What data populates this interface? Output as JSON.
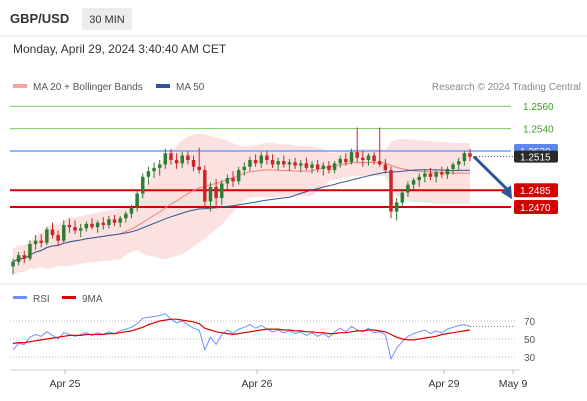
{
  "header": {
    "symbol": "GBP/USD",
    "timeframe": "30 MIN",
    "datetime": "Monday, April 29, 2024 3:40:40 AM CET"
  },
  "legend": {
    "ma20_label": "MA 20 + Bollinger Bands",
    "ma50_label": "MA 50",
    "credit": "Research © 2024 Trading Central"
  },
  "rsi_legend": {
    "rsi_label": "RSI",
    "ma_label": "9MA"
  },
  "colors": {
    "green_level": "#7cc46a",
    "blue_level": "#6f9dff",
    "red_level": "#d50000",
    "ma20": "#f08080",
    "ma50": "#2f5597",
    "bollinger_fill": "#fcdcdc",
    "candle_up": "#2e7d32",
    "candle_down": "#c62828",
    "rsi": "#6f8fff",
    "rsi_ma": "#e00000",
    "arrow": "#2f5597",
    "current_price_tag": "#2a2a2a"
  },
  "chart_data": {
    "type": "candlestick",
    "x_labels": [
      "Apr 25",
      "Apr 26",
      "Apr 29",
      "May 9"
    ],
    "levels": [
      {
        "price": "1.2560",
        "kind": "green"
      },
      {
        "price": "1.2540",
        "kind": "green"
      },
      {
        "price": "1.2520",
        "kind": "blue"
      },
      {
        "price": "1.2485",
        "kind": "red"
      },
      {
        "price": "1.2470",
        "kind": "red"
      }
    ],
    "current_price": "1.2515",
    "price_range": [
      1.2412,
      1.2562
    ],
    "forecast_arrow": {
      "from": 1.2515,
      "to": 1.2477
    },
    "candles": [
      [
        1.2417,
        1.2424,
        1.241,
        1.2421
      ],
      [
        1.2421,
        1.243,
        1.2418,
        1.2427
      ],
      [
        1.2427,
        1.2431,
        1.242,
        1.2424
      ],
      [
        1.2424,
        1.244,
        1.2422,
        1.2437
      ],
      [
        1.2437,
        1.2445,
        1.2432,
        1.244
      ],
      [
        1.244,
        1.2446,
        1.2434,
        1.2438
      ],
      [
        1.2438,
        1.2452,
        1.2436,
        1.245
      ],
      [
        1.245,
        1.2456,
        1.2442,
        1.2445
      ],
      [
        1.2445,
        1.2449,
        1.2435,
        1.244
      ],
      [
        1.244,
        1.2458,
        1.2438,
        1.2454
      ],
      [
        1.2454,
        1.246,
        1.2447,
        1.2452
      ],
      [
        1.2452,
        1.2458,
        1.2446,
        1.2449
      ],
      [
        1.2449,
        1.2455,
        1.2443,
        1.2451
      ],
      [
        1.2451,
        1.2457,
        1.2448,
        1.2455
      ],
      [
        1.2455,
        1.246,
        1.245,
        1.2452
      ],
      [
        1.2452,
        1.2458,
        1.2447,
        1.2456
      ],
      [
        1.2456,
        1.2461,
        1.245,
        1.2454
      ],
      [
        1.2454,
        1.2462,
        1.2451,
        1.2459
      ],
      [
        1.2459,
        1.2463,
        1.2453,
        1.2456
      ],
      [
        1.2456,
        1.2462,
        1.2452,
        1.246
      ],
      [
        1.246,
        1.2466,
        1.2456,
        1.2464
      ],
      [
        1.2464,
        1.2472,
        1.246,
        1.247
      ],
      [
        1.247,
        1.2485,
        1.2466,
        1.2482
      ],
      [
        1.2482,
        1.25,
        1.2478,
        1.2497
      ],
      [
        1.2497,
        1.2506,
        1.249,
        1.2502
      ],
      [
        1.2502,
        1.251,
        1.2496,
        1.2505
      ],
      [
        1.2505,
        1.2512,
        1.2498,
        1.2508
      ],
      [
        1.2508,
        1.2522,
        1.2504,
        1.2518
      ],
      [
        1.2518,
        1.2522,
        1.2508,
        1.2512
      ],
      [
        1.2512,
        1.2518,
        1.2504,
        1.2509
      ],
      [
        1.2509,
        1.2519,
        1.2505,
        1.2516
      ],
      [
        1.2516,
        1.252,
        1.2508,
        1.2512
      ],
      [
        1.2512,
        1.2516,
        1.2502,
        1.2506
      ],
      [
        1.2506,
        1.2523,
        1.25,
        1.2503
      ],
      [
        1.2503,
        1.2507,
        1.247,
        1.2475
      ],
      [
        1.2475,
        1.2492,
        1.2466,
        1.2488
      ],
      [
        1.2488,
        1.2495,
        1.247,
        1.2478
      ],
      [
        1.2478,
        1.2494,
        1.2472,
        1.2491
      ],
      [
        1.2491,
        1.2499,
        1.2486,
        1.2496
      ],
      [
        1.2496,
        1.2502,
        1.2488,
        1.2493
      ],
      [
        1.2493,
        1.2506,
        1.249,
        1.2503
      ],
      [
        1.2503,
        1.251,
        1.2498,
        1.2506
      ],
      [
        1.2506,
        1.2515,
        1.2502,
        1.2512
      ],
      [
        1.2512,
        1.2517,
        1.2506,
        1.2509
      ],
      [
        1.2509,
        1.2519,
        1.2505,
        1.2516
      ],
      [
        1.2516,
        1.252,
        1.2508,
        1.2512
      ],
      [
        1.2512,
        1.2517,
        1.2505,
        1.2508
      ],
      [
        1.2508,
        1.2514,
        1.2503,
        1.2511
      ],
      [
        1.2511,
        1.2516,
        1.2505,
        1.2508
      ],
      [
        1.2508,
        1.2513,
        1.2502,
        1.251
      ],
      [
        1.251,
        1.2514,
        1.2504,
        1.2507
      ],
      [
        1.2507,
        1.2512,
        1.2501,
        1.2509
      ],
      [
        1.2509,
        1.2514,
        1.2503,
        1.2505
      ],
      [
        1.2505,
        1.2511,
        1.25,
        1.2508
      ],
      [
        1.2508,
        1.2512,
        1.2501,
        1.2504
      ],
      [
        1.2504,
        1.251,
        1.2498,
        1.2507
      ],
      [
        1.2507,
        1.2511,
        1.25,
        1.2503
      ],
      [
        1.2503,
        1.2511,
        1.25,
        1.2509
      ],
      [
        1.2509,
        1.2516,
        1.2505,
        1.2513
      ],
      [
        1.2513,
        1.2518,
        1.2507,
        1.251
      ],
      [
        1.251,
        1.2522,
        1.2508,
        1.2519
      ],
      [
        1.2519,
        1.2541,
        1.251,
        1.2514
      ],
      [
        1.2514,
        1.252,
        1.2506,
        1.2512
      ],
      [
        1.2512,
        1.2518,
        1.2507,
        1.2516
      ],
      [
        1.2516,
        1.2519,
        1.2508,
        1.2511
      ],
      [
        1.2511,
        1.2541,
        1.2506,
        1.2508
      ],
      [
        1.2508,
        1.2513,
        1.25,
        1.2503
      ],
      [
        1.2503,
        1.2506,
        1.246,
        1.2466
      ],
      [
        1.2466,
        1.2478,
        1.2458,
        1.2474
      ],
      [
        1.2474,
        1.2486,
        1.247,
        1.2483
      ],
      [
        1.2483,
        1.2493,
        1.2479,
        1.249
      ],
      [
        1.249,
        1.2496,
        1.2485,
        1.2494
      ],
      [
        1.2494,
        1.25,
        1.2488,
        1.2497
      ],
      [
        1.2497,
        1.2504,
        1.2492,
        1.25
      ],
      [
        1.25,
        1.2505,
        1.2494,
        1.2497
      ],
      [
        1.2497,
        1.2503,
        1.2492,
        1.2501
      ],
      [
        1.2501,
        1.2506,
        1.2496,
        1.2499
      ],
      [
        1.2499,
        1.2506,
        1.2495,
        1.2504
      ],
      [
        1.2504,
        1.251,
        1.2499,
        1.2508
      ],
      [
        1.2508,
        1.2514,
        1.2503,
        1.2511
      ],
      [
        1.2511,
        1.252,
        1.2507,
        1.2518
      ],
      [
        1.2518,
        1.2522,
        1.2511,
        1.2515
      ]
    ],
    "rsi_axis": [
      "70",
      "50",
      "30"
    ],
    "rsi": [
      38,
      45,
      44,
      52,
      55,
      53,
      58,
      54,
      50,
      57,
      55,
      53,
      55,
      57,
      54,
      57,
      55,
      58,
      56,
      59,
      61,
      63,
      67,
      73,
      74,
      75,
      76,
      78,
      72,
      68,
      70,
      66,
      62,
      60,
      38,
      52,
      44,
      55,
      60,
      56,
      61,
      63,
      66,
      62,
      65,
      61,
      58,
      60,
      57,
      59,
      56,
      58,
      54,
      57,
      53,
      56,
      52,
      58,
      62,
      58,
      64,
      60,
      58,
      62,
      57,
      58,
      55,
      28,
      40,
      47,
      53,
      56,
      58,
      60,
      56,
      59,
      57,
      61,
      63,
      65,
      66,
      64
    ],
    "rsi_ma": [
      45,
      46,
      46,
      47,
      48,
      49,
      50,
      51,
      52,
      53,
      54,
      54,
      54,
      55,
      55,
      55,
      55,
      56,
      56,
      57,
      58,
      59,
      61,
      63,
      66,
      68,
      70,
      71,
      72,
      72,
      71,
      70,
      69,
      67,
      62,
      60,
      58,
      57,
      56,
      55,
      56,
      57,
      58,
      59,
      60,
      61,
      61,
      61,
      60,
      60,
      59,
      59,
      58,
      58,
      57,
      57,
      56,
      56,
      57,
      57,
      58,
      59,
      59,
      60,
      60,
      59,
      58,
      55,
      52,
      50,
      49,
      49,
      50,
      51,
      52,
      53,
      55,
      56,
      57,
      58,
      59,
      60
    ]
  }
}
